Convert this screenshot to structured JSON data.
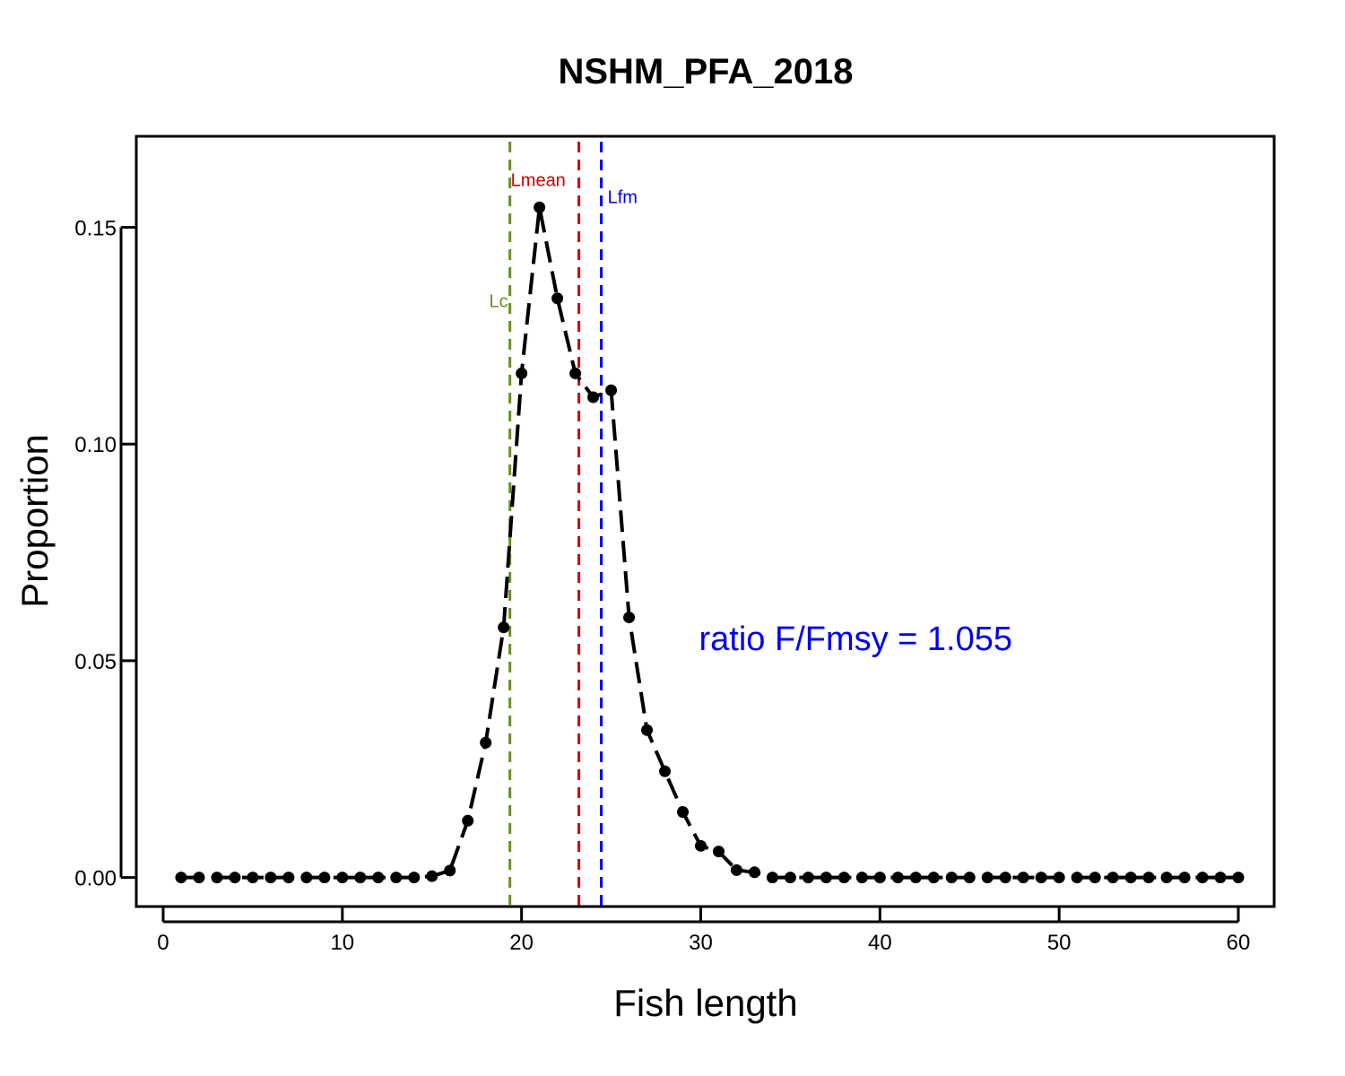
{
  "chart_data": {
    "type": "line",
    "title": "NSHM_PFA_2018",
    "xlabel": "Fish length",
    "ylabel": "Proportion",
    "xlim": [
      -1.5,
      62
    ],
    "ylim": [
      -0.0067,
      0.171
    ],
    "x_ticks": [
      0,
      10,
      20,
      30,
      40,
      50,
      60
    ],
    "x_tick_labels": [
      "0",
      "10",
      "20",
      "30",
      "40",
      "50",
      "60"
    ],
    "y_ticks": [
      0,
      0.05,
      0.1,
      0.15
    ],
    "y_tick_labels": [
      "0.00",
      "0.05",
      "0.10",
      "0.15"
    ],
    "grid": false,
    "series": [
      {
        "color": "#000000",
        "x": [
          1,
          2,
          3,
          4,
          5,
          6,
          7,
          8,
          9,
          10,
          11,
          12,
          13,
          14,
          15,
          16,
          17,
          18,
          19,
          20,
          21,
          22,
          23,
          24,
          25,
          26,
          27,
          28,
          29,
          30,
          31,
          32,
          33,
          34,
          35,
          36,
          37,
          38,
          39,
          40,
          41,
          42,
          43,
          44,
          45,
          46,
          47,
          48,
          49,
          50,
          51,
          52,
          53,
          54,
          55,
          56,
          57,
          58,
          59,
          60
        ],
        "y": [
          0,
          0,
          0,
          0,
          0,
          0,
          0,
          0,
          0,
          0,
          0,
          0,
          0,
          0,
          0.0003,
          0.0016,
          0.0131,
          0.0311,
          0.0577,
          0.1163,
          0.1546,
          0.1336,
          0.1163,
          0.1108,
          0.1124,
          0.06,
          0.034,
          0.0245,
          0.0151,
          0.0073,
          0.006,
          0.0017,
          0.0012,
          0,
          0,
          0,
          0,
          0,
          0,
          0,
          0,
          0,
          0,
          0,
          0,
          0,
          0,
          0,
          0,
          0,
          0,
          0,
          0,
          0,
          0,
          0,
          0,
          0,
          0,
          0
        ]
      }
    ],
    "reference_lines": [
      {
        "label": "Lc",
        "x": 19.35,
        "color": "#6b8e23",
        "label_y": 0.133,
        "label_side": "left"
      },
      {
        "label": "Lmean",
        "x": 23.2,
        "color": "#cc0000",
        "label_y": 0.161,
        "label_side": "left"
      },
      {
        "label": "Lfm",
        "x": 24.45,
        "color": "#0000ee",
        "label_y": 0.157,
        "label_side": "right"
      }
    ],
    "annotation": {
      "text": "ratio F/Fmsy = 1.055",
      "color": "#0000ee",
      "x": 29.9,
      "y": 0.0525
    }
  }
}
